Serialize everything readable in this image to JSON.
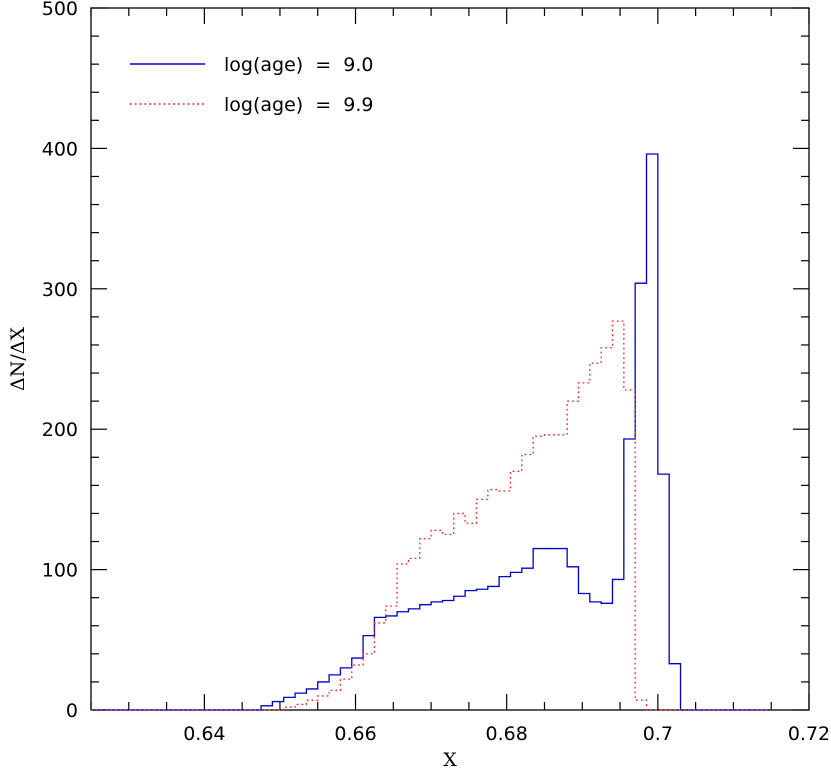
{
  "chart_data": {
    "type": "line",
    "step": true,
    "xlabel": "X",
    "ylabel": "ΔN/ΔX",
    "xlim": [
      0.625,
      0.72
    ],
    "ylim": [
      0,
      500
    ],
    "x_ticks": [
      0.64,
      0.66,
      0.68,
      0.7,
      0.72
    ],
    "x_tick_labels": [
      "0.64",
      "0.66",
      "0.68",
      "0.7",
      "0.72"
    ],
    "y_ticks": [
      0,
      100,
      200,
      300,
      400,
      500
    ],
    "y_tick_labels": [
      "0",
      "100",
      "200",
      "300",
      "400",
      "500"
    ],
    "legend_position": "top-left",
    "bin_width": 0.0015,
    "series": [
      {
        "name": "log(age)  =  9.0",
        "color": "#0000cc",
        "style": "solid",
        "bin_edges": [
          0.625,
          0.6475,
          0.649,
          0.6505,
          0.652,
          0.6535,
          0.655,
          0.6565,
          0.658,
          0.6595,
          0.661,
          0.6625,
          0.664,
          0.6655,
          0.667,
          0.6685,
          0.67,
          0.6715,
          0.673,
          0.6745,
          0.676,
          0.6775,
          0.679,
          0.6805,
          0.682,
          0.6835,
          0.685,
          0.6865,
          0.688,
          0.6895,
          0.691,
          0.6925,
          0.694,
          0.6955,
          0.697,
          0.6985,
          0.7,
          0.7015,
          0.703,
          0.7045,
          0.706,
          0.7075,
          0.709,
          0.7105,
          0.712,
          0.7135,
          0.715
        ],
        "values": [
          0,
          3,
          6,
          9,
          12,
          15,
          20,
          25,
          30,
          37,
          53,
          66,
          67,
          70,
          72,
          75,
          77,
          78,
          81,
          85,
          86,
          88,
          95,
          98,
          101,
          115,
          115,
          115,
          102,
          83,
          77,
          76,
          93,
          193,
          304,
          396,
          168,
          33,
          0,
          0,
          0,
          0,
          0,
          0,
          0,
          0
        ]
      },
      {
        "name": "log(age)  =  9.9",
        "color": "#ff2222",
        "style": "dotted",
        "bin_edges": [
          0.625,
          0.6505,
          0.652,
          0.6535,
          0.655,
          0.6565,
          0.658,
          0.6595,
          0.661,
          0.6625,
          0.664,
          0.6655,
          0.667,
          0.6685,
          0.67,
          0.6715,
          0.673,
          0.6745,
          0.676,
          0.6775,
          0.679,
          0.6805,
          0.682,
          0.6835,
          0.685,
          0.6865,
          0.688,
          0.6895,
          0.691,
          0.6925,
          0.694,
          0.6955,
          0.697,
          0.6985,
          0.7,
          0.7015,
          0.703,
          0.7045,
          0.706,
          0.7075,
          0.709,
          0.7105,
          0.712,
          0.7135,
          0.715
        ],
        "values": [
          0,
          2,
          4,
          7,
          10,
          14,
          22,
          32,
          40,
          62,
          74,
          104,
          108,
          122,
          128,
          125,
          140,
          133,
          150,
          157,
          156,
          170,
          182,
          195,
          196,
          196,
          220,
          233,
          247,
          258,
          277,
          228,
          7,
          0,
          0,
          0,
          0,
          0,
          0,
          0,
          0,
          0,
          0,
          0
        ]
      }
    ]
  }
}
